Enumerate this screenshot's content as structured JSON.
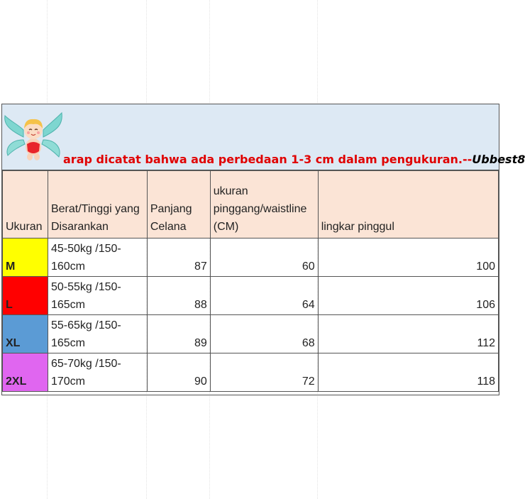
{
  "notice": {
    "text": "arap dicatat bahwa ada perbedaan 1-3 cm dalam pengukuran.--",
    "brand": "Ubbest8"
  },
  "illustration": "cherub-angel-mascot",
  "table": {
    "headers": {
      "size": "Ukuran",
      "weight_height": "Berat/Tinggi yang Disarankan",
      "length": "Panjang Celana",
      "waist": "ukuran pinggang/waistline (CM)",
      "hip": "lingkar pinggul"
    },
    "header_bg": "#fbe4d6",
    "rows": [
      {
        "size": "M",
        "color": "#ffff00",
        "weight_height": "45-50kg /150-160cm",
        "length": "87",
        "waist": "60",
        "hip": "100"
      },
      {
        "size": "L",
        "color": "#ff0000",
        "weight_height": "50-55kg /150-165cm",
        "length": "88",
        "waist": "64",
        "hip": "106"
      },
      {
        "size": "XL",
        "color": "#5b9bd5",
        "weight_height": "55-65kg /150-165cm",
        "length": "89",
        "waist": "68",
        "hip": "112"
      },
      {
        "size": "2XL",
        "color": "#e066f0",
        "weight_height": "65-70kg /150-170cm",
        "length": "90",
        "waist": "72",
        "hip": "118"
      }
    ]
  }
}
